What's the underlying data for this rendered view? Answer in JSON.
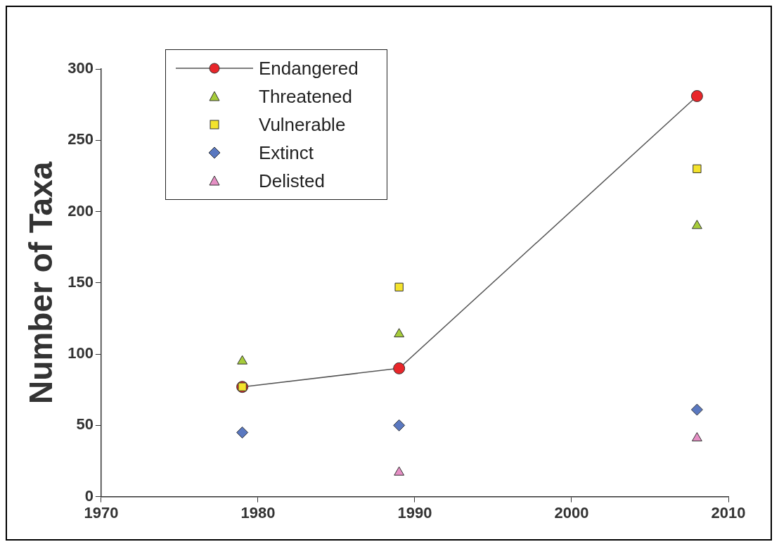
{
  "chart_data": {
    "type": "scatter",
    "ylabel": "Number of Taxa",
    "xlim": [
      1970,
      2010
    ],
    "xticks": [
      1970,
      1980,
      1990,
      2000,
      2010
    ],
    "ylim": [
      0,
      300
    ],
    "yticks": [
      0,
      50,
      100,
      150,
      200,
      250,
      300
    ],
    "grid": false,
    "legend": "top left",
    "series": [
      {
        "name": "Endangered",
        "type": "line",
        "marker": "circle",
        "color": "#e8262a",
        "x": [
          1979,
          1989,
          2008
        ],
        "values": [
          77,
          90,
          281
        ]
      },
      {
        "name": "Threatened",
        "marker": "triangle",
        "color": "#a6cc3a",
        "x": [
          1979,
          1989,
          2008
        ],
        "values": [
          95,
          114,
          190
        ]
      },
      {
        "name": "Vulnerable",
        "marker": "square",
        "color": "#f4e32c",
        "x": [
          1979,
          1989,
          2008
        ],
        "values": [
          77,
          147,
          230
        ]
      },
      {
        "name": "Extinct",
        "marker": "diamond",
        "color": "#5a78c0",
        "x": [
          1979,
          1989,
          2008
        ],
        "values": [
          45,
          50,
          61
        ]
      },
      {
        "name": "Delisted",
        "marker": "triangle",
        "color": "#e58fc4",
        "x": [
          1989,
          2008
        ],
        "values": [
          17,
          41
        ]
      }
    ]
  }
}
